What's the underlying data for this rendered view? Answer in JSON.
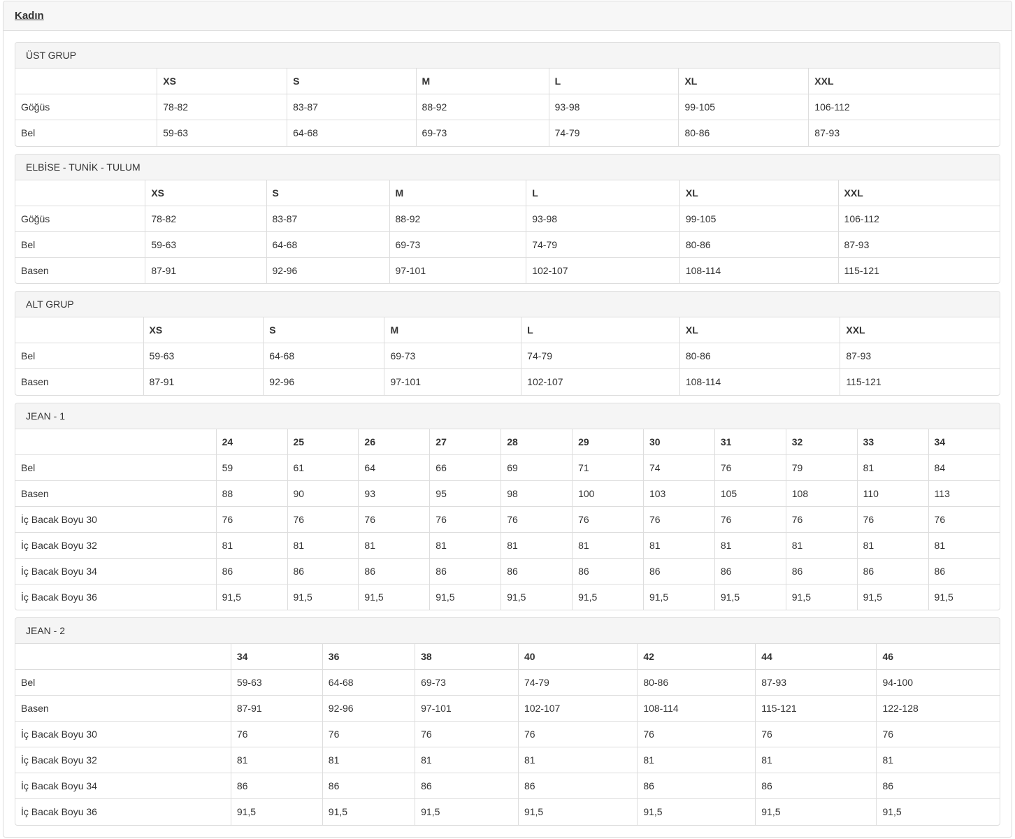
{
  "page_title": "Kadın",
  "colors": {
    "border": "#dddddd",
    "strip_bg": "#f7f7f7",
    "panel_heading_bg": "#f5f5f5",
    "text": "#333333"
  },
  "sections": [
    {
      "heading": "ÜST GRUP",
      "columns": [
        "",
        "XS",
        "S",
        "M",
        "L",
        "XL",
        "XXL"
      ],
      "rows": [
        {
          "label": "Göğüs",
          "values": [
            "78-82",
            "83-87",
            "88-92",
            "93-98",
            "99-105",
            "106-112"
          ]
        },
        {
          "label": "Bel",
          "values": [
            "59-63",
            "64-68",
            "69-73",
            "74-79",
            "80-86",
            "87-93"
          ]
        }
      ]
    },
    {
      "heading": "ELBİSE - TUNİK - TULUM",
      "columns": [
        "",
        "XS",
        "S",
        "M",
        "L",
        "XL",
        "XXL"
      ],
      "rows": [
        {
          "label": "Göğüs",
          "values": [
            "78-82",
            "83-87",
            "88-92",
            "93-98",
            "99-105",
            "106-112"
          ]
        },
        {
          "label": "Bel",
          "values": [
            "59-63",
            "64-68",
            "69-73",
            "74-79",
            "80-86",
            "87-93"
          ]
        },
        {
          "label": "Basen",
          "values": [
            "87-91",
            "92-96",
            "97-101",
            "102-107",
            "108-114",
            "115-121"
          ]
        }
      ]
    },
    {
      "heading": "ALT GRUP",
      "columns": [
        "",
        "XS",
        "S",
        "M",
        "L",
        "XL",
        "XXL"
      ],
      "rows": [
        {
          "label": "Bel",
          "values": [
            "59-63",
            "64-68",
            "69-73",
            "74-79",
            "80-86",
            "87-93"
          ]
        },
        {
          "label": "Basen",
          "values": [
            "87-91",
            "92-96",
            "97-101",
            "102-107",
            "108-114",
            "115-121"
          ]
        }
      ]
    },
    {
      "heading": "JEAN - 1",
      "columns": [
        "",
        "24",
        "25",
        "26",
        "27",
        "28",
        "29",
        "30",
        "31",
        "32",
        "33",
        "34"
      ],
      "rows": [
        {
          "label": "Bel",
          "values": [
            "59",
            "61",
            "64",
            "66",
            "69",
            "71",
            "74",
            "76",
            "79",
            "81",
            "84"
          ]
        },
        {
          "label": "Basen",
          "values": [
            "88",
            "90",
            "93",
            "95",
            "98",
            "100",
            "103",
            "105",
            "108",
            "110",
            "113"
          ]
        },
        {
          "label": "İç Bacak Boyu 30",
          "values": [
            "76",
            "76",
            "76",
            "76",
            "76",
            "76",
            "76",
            "76",
            "76",
            "76",
            "76"
          ]
        },
        {
          "label": "İç Bacak Boyu 32",
          "values": [
            "81",
            "81",
            "81",
            "81",
            "81",
            "81",
            "81",
            "81",
            "81",
            "81",
            "81"
          ]
        },
        {
          "label": "İç Bacak Boyu 34",
          "values": [
            "86",
            "86",
            "86",
            "86",
            "86",
            "86",
            "86",
            "86",
            "86",
            "86",
            "86"
          ]
        },
        {
          "label": "İç Bacak Boyu 36",
          "values": [
            "91,5",
            "91,5",
            "91,5",
            "91,5",
            "91,5",
            "91,5",
            "91,5",
            "91,5",
            "91,5",
            "91,5",
            "91,5"
          ]
        }
      ]
    },
    {
      "heading": "JEAN - 2",
      "columns": [
        "",
        "34",
        "36",
        "38",
        "40",
        "42",
        "44",
        "46"
      ],
      "rows": [
        {
          "label": "Bel",
          "values": [
            "59-63",
            "64-68",
            "69-73",
            "74-79",
            "80-86",
            "87-93",
            "94-100"
          ]
        },
        {
          "label": "Basen",
          "values": [
            "87-91",
            "92-96",
            "97-101",
            "102-107",
            "108-114",
            "115-121",
            "122-128"
          ]
        },
        {
          "label": "İç Bacak Boyu 30",
          "values": [
            "76",
            "76",
            "76",
            "76",
            "76",
            "76",
            "76"
          ]
        },
        {
          "label": "İç Bacak Boyu 32",
          "values": [
            "81",
            "81",
            "81",
            "81",
            "81",
            "81",
            "81"
          ]
        },
        {
          "label": "İç Bacak Boyu 34",
          "values": [
            "86",
            "86",
            "86",
            "86",
            "86",
            "86",
            "86"
          ]
        },
        {
          "label": "İç Bacak Boyu 36",
          "values": [
            "91,5",
            "91,5",
            "91,5",
            "91,5",
            "91,5",
            "91,5",
            "91,5"
          ]
        }
      ]
    }
  ]
}
